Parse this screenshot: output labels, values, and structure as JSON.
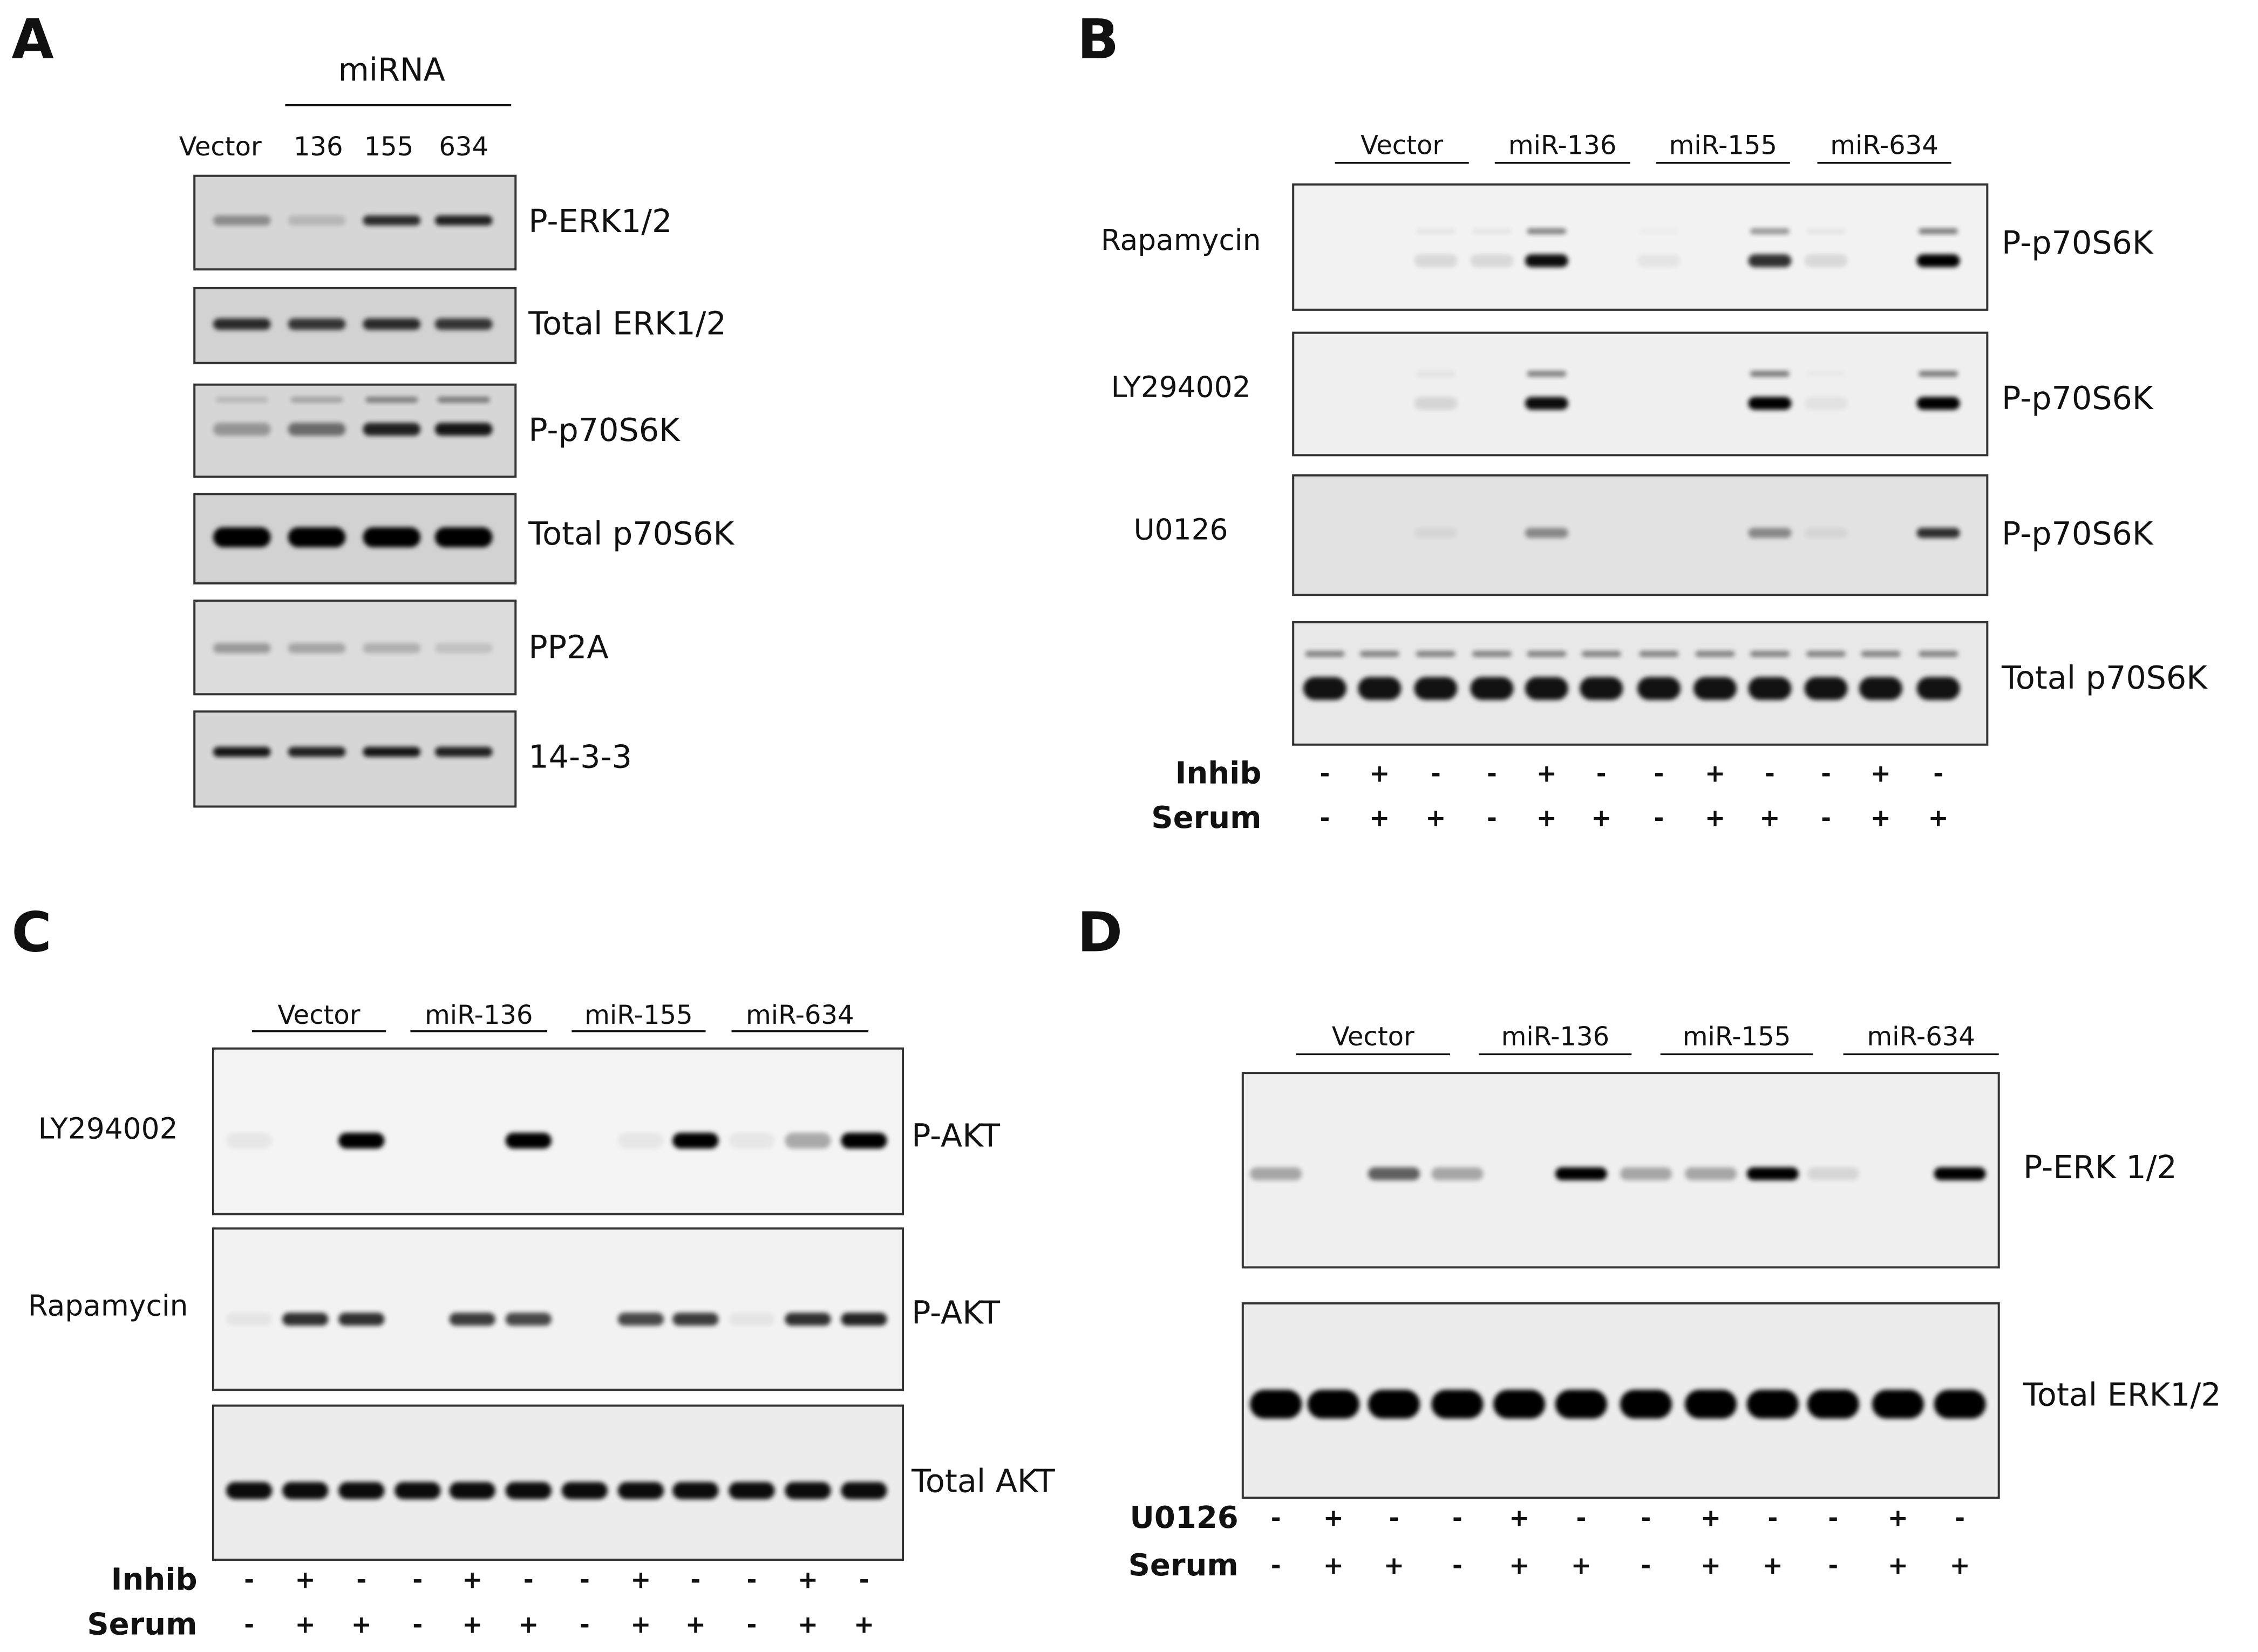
{
  "panels": [
    {
      "letter": "A",
      "group_label": "miRNA",
      "lanes": [
        "Vector",
        "136",
        "155",
        "634"
      ],
      "blots": [
        {
          "label": "P-ERK1/2"
        },
        {
          "label": "Total ERK1/2"
        },
        {
          "label": "P-p70S6K"
        },
        {
          "label": "Total p70S6K"
        },
        {
          "label": "PP2A"
        },
        {
          "label": "14-3-3"
        }
      ]
    },
    {
      "letter": "B",
      "groups": [
        "Vector",
        "miR-136",
        "miR-155",
        "miR-634"
      ],
      "blots": [
        {
          "treatment": "Rapamycin",
          "label": "P-p70S6K"
        },
        {
          "treatment": "LY294002",
          "label": "P-p70S6K"
        },
        {
          "treatment": "U0126",
          "label": "P-p70S6K"
        },
        {
          "label": "Total p70S6K"
        }
      ],
      "conditions": [
        {
          "label": "Inhib",
          "signs": [
            "-",
            "+",
            "-",
            "-",
            "+",
            "-",
            "-",
            "+",
            "-",
            "-",
            "+",
            "-"
          ]
        },
        {
          "label": "Serum",
          "signs": [
            "-",
            "+",
            "+",
            "-",
            "+",
            "+",
            "-",
            "+",
            "+",
            "-",
            "+",
            "+"
          ]
        }
      ]
    },
    {
      "letter": "C",
      "groups": [
        "Vector",
        "miR-136",
        "miR-155",
        "miR-634"
      ],
      "blots": [
        {
          "treatment": "LY294002",
          "label": "P-AKT"
        },
        {
          "treatment": "Rapamycin",
          "label": "P-AKT"
        },
        {
          "label": "Total AKT"
        }
      ],
      "conditions": [
        {
          "label": "Inhib",
          "signs": [
            "-",
            "+",
            "-",
            "-",
            "+",
            "-",
            "-",
            "+",
            "-",
            "-",
            "+",
            "-"
          ]
        },
        {
          "label": "Serum",
          "signs": [
            "-",
            "+",
            "+",
            "-",
            "+",
            "+",
            "-",
            "+",
            "+",
            "-",
            "+",
            "+"
          ]
        }
      ]
    },
    {
      "letter": "D",
      "groups": [
        "Vector",
        "miR-136",
        "miR-155",
        "miR-634"
      ],
      "blots": [
        {
          "label": "P-ERK 1/2"
        },
        {
          "label": "Total ERK1/2"
        }
      ],
      "conditions": [
        {
          "label": "U0126",
          "signs": [
            "-",
            "+",
            "-",
            "-",
            "+",
            "-",
            "-",
            "+",
            "-",
            "-",
            "+",
            "-"
          ]
        },
        {
          "label": "Serum",
          "signs": [
            "-",
            "+",
            "+",
            "-",
            "+",
            "+",
            "-",
            "+",
            "+",
            "-",
            "+",
            "+"
          ]
        }
      ]
    }
  ]
}
